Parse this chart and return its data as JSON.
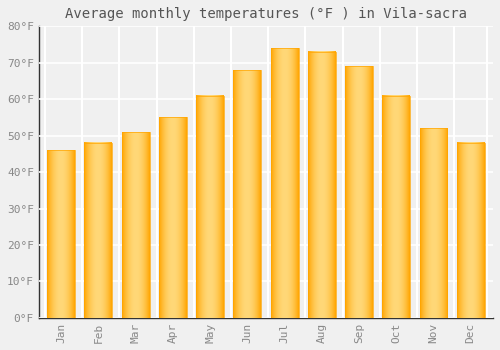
{
  "months": [
    "Jan",
    "Feb",
    "Mar",
    "Apr",
    "May",
    "Jun",
    "Jul",
    "Aug",
    "Sep",
    "Oct",
    "Nov",
    "Dec"
  ],
  "values": [
    46,
    48,
    51,
    55,
    61,
    68,
    74,
    73,
    69,
    61,
    52,
    48
  ],
  "bar_color_left": "#FFA500",
  "bar_color_center": "#FFD050",
  "bar_color": "#FFB800",
  "bar_edge_color": "#FFA500",
  "title": "Average monthly temperatures (°F ) in Vila-sacra",
  "ylim": [
    0,
    80
  ],
  "yticks": [
    0,
    10,
    20,
    30,
    40,
    50,
    60,
    70,
    80
  ],
  "ytick_labels": [
    "0°F",
    "10°F",
    "20°F",
    "30°F",
    "40°F",
    "50°F",
    "60°F",
    "70°F",
    "80°F"
  ],
  "background_color": "#f0f0f0",
  "plot_bg_color": "#f0f0f0",
  "grid_color": "#ffffff",
  "title_fontsize": 10,
  "tick_fontsize": 8,
  "bar_width": 0.75
}
